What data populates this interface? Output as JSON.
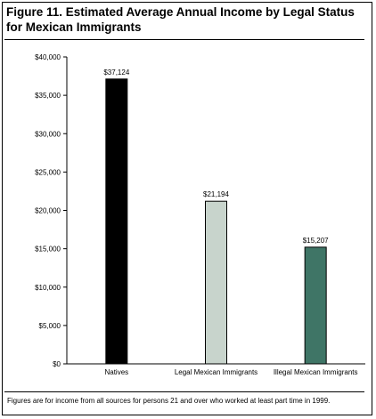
{
  "header": {
    "title": "Figure 11. Estimated Average Annual Income by Legal Status for Mexican Immigrants"
  },
  "footnote": "Figures are for income from all sources for persons 21 and over who worked at least part time in 1999.",
  "chart_data": {
    "type": "bar",
    "title": "Figure 11. Estimated Average Annual Income by Legal Status for Mexican Immigrants",
    "xlabel": "",
    "ylabel": "",
    "ylim": [
      0,
      40000
    ],
    "y_ticks": [
      0,
      5000,
      10000,
      15000,
      20000,
      25000,
      30000,
      35000,
      40000
    ],
    "y_tick_labels": [
      "$0",
      "$5,000",
      "$10,000",
      "$15,000",
      "$20,000",
      "$25,000",
      "$30,000",
      "$35,000",
      "$40,000"
    ],
    "categories": [
      "Natives",
      "Legal Mexican Immigrants",
      "Illegal Mexican Immigrants"
    ],
    "values": [
      37124,
      21194,
      15207
    ],
    "data_labels": [
      "$37,124",
      "$21,194",
      "$15,207"
    ],
    "colors": [
      "#000000",
      "#c8d4cc",
      "#3f7566"
    ],
    "grid": false,
    "legend": "none"
  }
}
